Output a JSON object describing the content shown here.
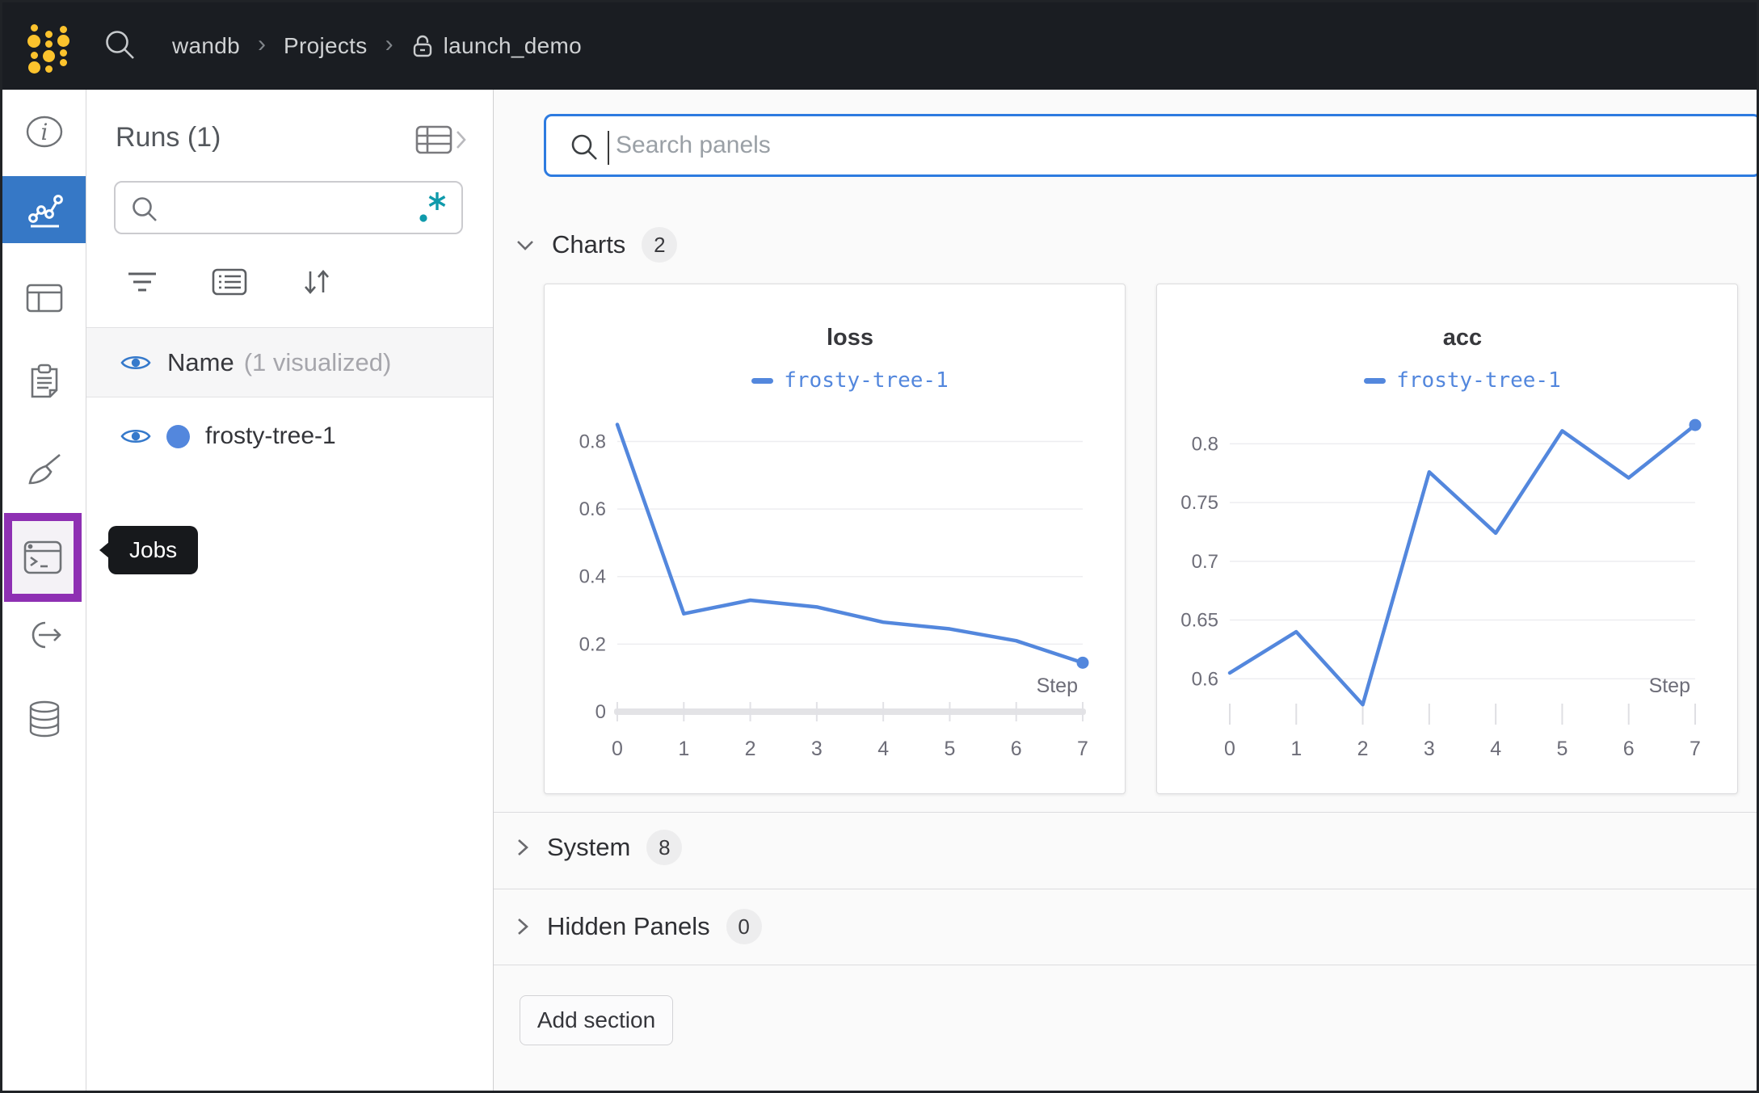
{
  "topbar": {
    "breadcrumb": [
      {
        "label": "wandb"
      },
      {
        "label": "Projects"
      },
      {
        "label": "launch_demo",
        "locked": true
      }
    ]
  },
  "sidebar": {
    "icons": [
      "info-icon",
      "line-chart-icon",
      "table-icon",
      "clipboard-icon",
      "broom-icon",
      "terminal-icon",
      "automation-icon",
      "database-icon"
    ],
    "active_item": "line-chart",
    "highlighted_item": "jobs",
    "tooltip": "Jobs"
  },
  "runs_panel": {
    "title": "Runs (1)",
    "search_value": "",
    "visualized": {
      "label": "Name",
      "note": "(1 visualized)"
    },
    "runs": [
      {
        "name": "frosty-tree-1",
        "color": "#5387dd"
      }
    ]
  },
  "main": {
    "search": {
      "placeholder": "Search panels",
      "value": ""
    },
    "sections": [
      {
        "label": "Charts",
        "count": "2",
        "expanded": true
      },
      {
        "label": "System",
        "count": "8",
        "expanded": false
      },
      {
        "label": "Hidden Panels",
        "count": "0",
        "expanded": false
      }
    ],
    "add_section_label": "Add section"
  },
  "chart_data": [
    {
      "type": "line",
      "title": "loss",
      "x": [
        0,
        1,
        2,
        3,
        4,
        5,
        6,
        7
      ],
      "series": [
        {
          "name": "frosty-tree-1",
          "color": "#5387dd",
          "values": [
            0.85,
            0.29,
            0.33,
            0.31,
            0.265,
            0.245,
            0.21,
            0.145
          ]
        }
      ],
      "xlabel": "Step",
      "yticks": [
        0,
        0.2,
        0.4,
        0.6,
        0.8
      ],
      "ytick_labels": [
        "0",
        "0.2",
        "0.4",
        "0.6",
        "0.8"
      ],
      "ylim": [
        0,
        0.88
      ],
      "baseline_bar": true,
      "grid": true,
      "legend_position": "top",
      "end_marker": true
    },
    {
      "type": "line",
      "title": "acc",
      "x": [
        0,
        1,
        2,
        3,
        4,
        5,
        6,
        7
      ],
      "series": [
        {
          "name": "frosty-tree-1",
          "color": "#5387dd",
          "values": [
            0.605,
            0.64,
            0.578,
            0.776,
            0.724,
            0.811,
            0.771,
            0.816
          ]
        }
      ],
      "xlabel": "Step",
      "yticks": [
        0.6,
        0.65,
        0.7,
        0.75,
        0.8
      ],
      "ytick_labels": [
        "0.6",
        "0.65",
        "0.7",
        "0.75",
        "0.8"
      ],
      "ylim": [
        0.572,
        0.825
      ],
      "baseline_bar": false,
      "grid": true,
      "legend_position": "top",
      "end_marker": true
    }
  ],
  "colors": {
    "accent_blue": "#3678c6",
    "run_blue": "#5387dd",
    "teal": "#0f9aab",
    "purple": "#8e30b3",
    "gold": "#fcc32d",
    "focus_border": "#2d7be0"
  }
}
